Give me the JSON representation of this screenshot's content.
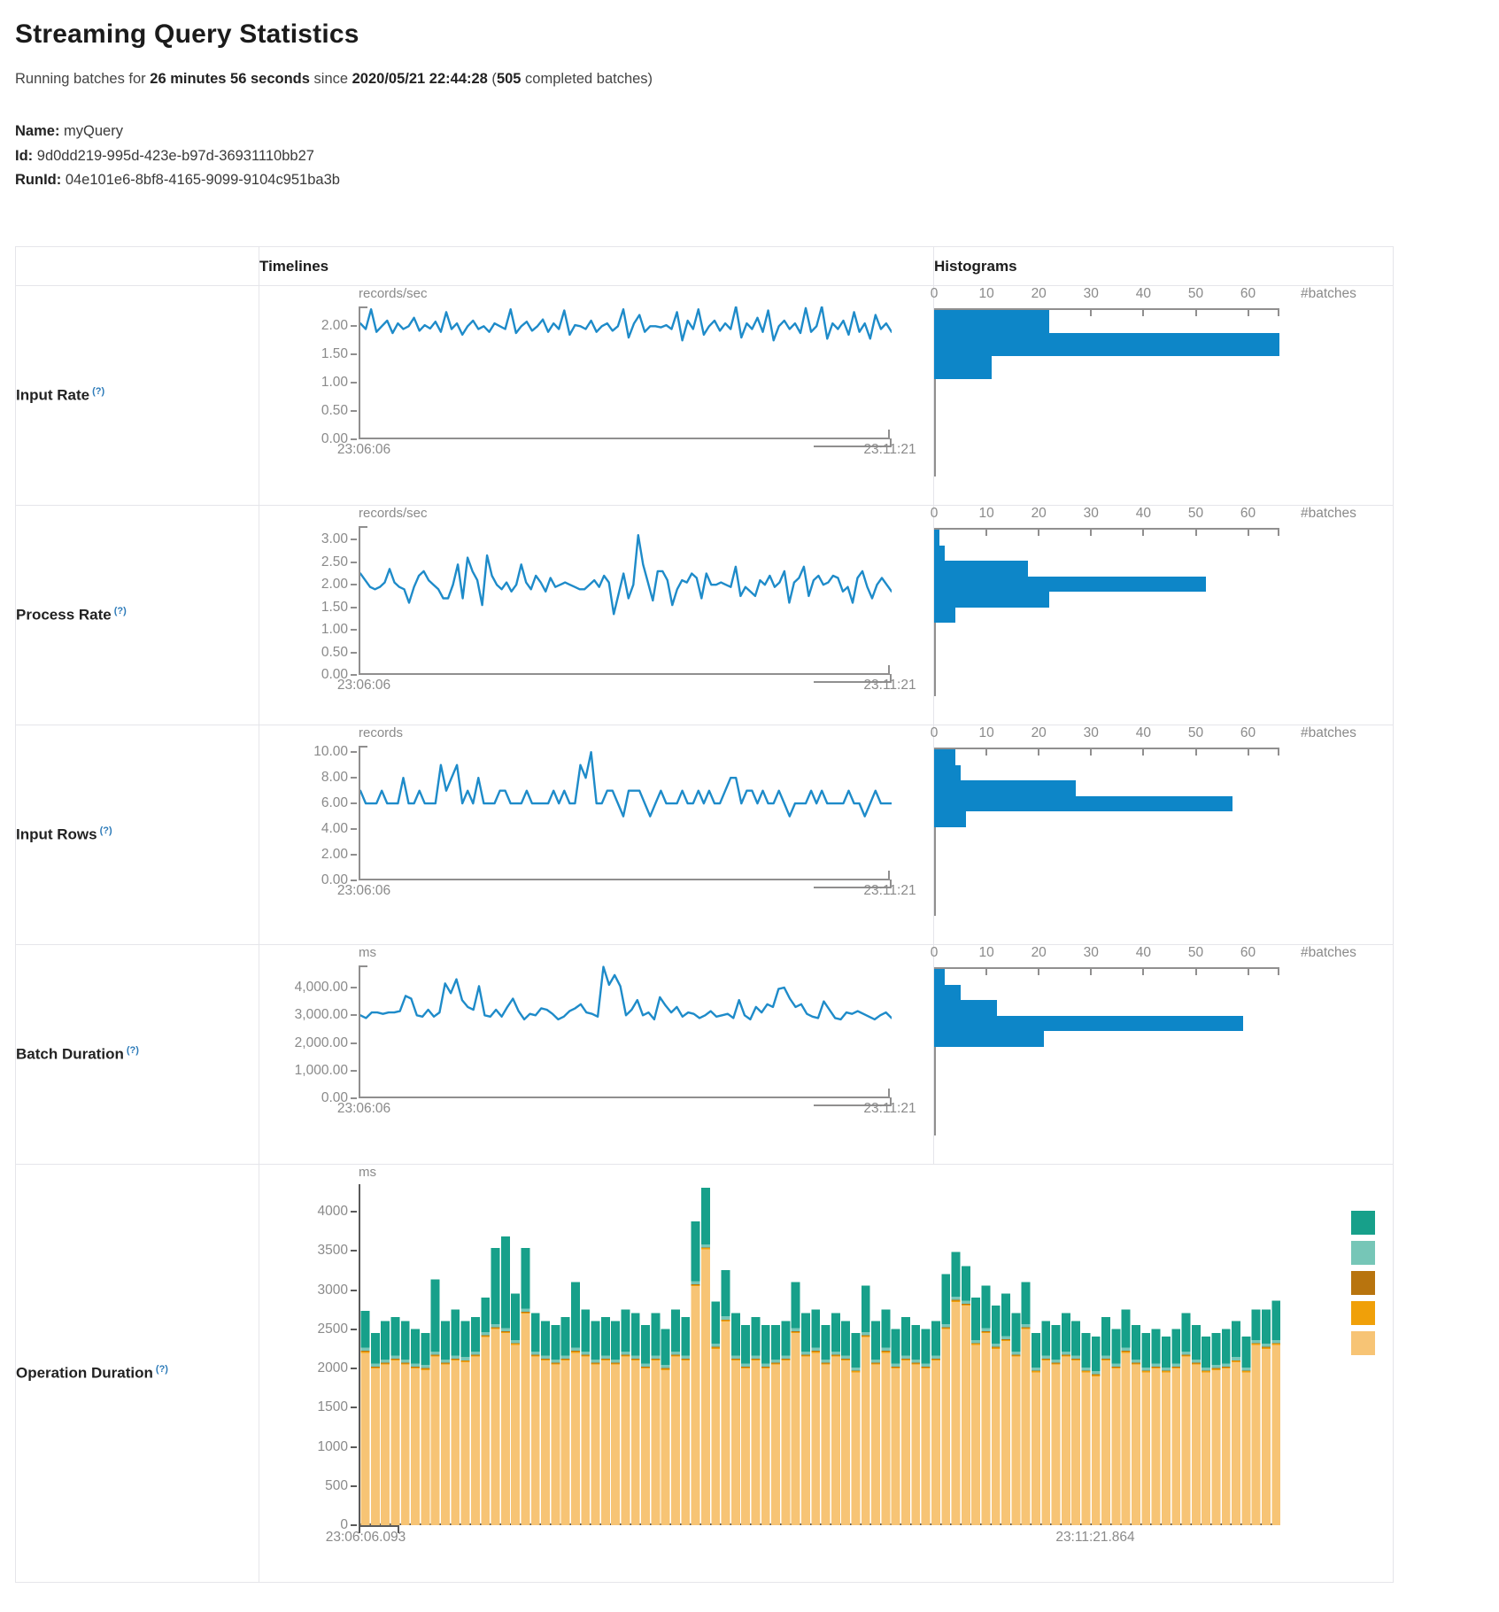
{
  "page": {
    "title": "Streaming Query Statistics",
    "subtitle": {
      "prefix": "Running batches for ",
      "duration": "26 minutes 56 seconds",
      "since": " since ",
      "start_time": "2020/05/21 22:44:28",
      "open_paren": " (",
      "batch_count": "505",
      "suffix": " completed batches)"
    },
    "query": {
      "name_label": "Name:",
      "name": "myQuery",
      "id_label": "Id:",
      "id": "9d0dd219-995d-423e-b97d-36931110bb27",
      "runid_label": "RunId:",
      "runid": "04e101e6-8bf8-4165-9099-9104c951ba3b"
    },
    "table_headers": {
      "timelines": "Timelines",
      "histograms": "Histograms"
    },
    "help_marker": "(?)"
  },
  "colors": {
    "line_blue": "#1e8bc9",
    "hist_blue": "#0d86c8",
    "axis_gray": "#908f8f",
    "axis_dark": "#5a5a5a",
    "teal": "#17a08a",
    "light_teal": "#76c6b7",
    "dark_orange": "#b8740e",
    "orange": "#f0a009",
    "tan": "#f7c475"
  },
  "chart_data": [
    {
      "label": "Input Rate",
      "timeline": {
        "type": "line",
        "unit": "records/sec",
        "ylim": [
          0,
          2.35
        ],
        "yticks": [
          {
            "label": "2.00",
            "v": 2
          },
          {
            "label": "1.50",
            "v": 1.5
          },
          {
            "label": "1.00",
            "v": 1
          },
          {
            "label": "0.50",
            "v": 0.5
          },
          {
            "label": "0.00",
            "v": 0
          }
        ],
        "x_start": "23:06:06",
        "x_end": "23:11:21",
        "values": [
          2.05,
          1.95,
          2.3,
          1.9,
          2.0,
          2.1,
          1.88,
          2.05,
          1.95,
          2.0,
          2.15,
          1.92,
          2.02,
          1.96,
          2.08,
          1.9,
          2.25,
          1.95,
          2.05,
          1.85,
          2.0,
          2.1,
          1.95,
          2.0,
          1.9,
          2.05,
          2.0,
          1.95,
          2.3,
          1.88,
          2.0,
          2.08,
          1.92,
          2.0,
          2.12,
          1.9,
          2.05,
          1.95,
          2.28,
          1.85,
          2.02,
          2.0,
          1.95,
          2.1,
          1.9,
          2.0,
          2.05,
          1.92,
          2.0,
          2.3,
          1.8,
          2.05,
          2.2,
          1.9,
          2.0,
          2.0,
          1.98,
          2.02,
          1.95,
          2.25,
          1.75,
          2.1,
          1.95,
          2.3,
          1.85,
          2.0,
          2.1,
          1.92,
          2.05,
          1.95,
          2.35,
          1.8,
          2.05,
          1.95,
          2.15,
          1.9,
          2.28,
          1.75,
          2.0,
          2.1,
          1.95,
          2.05,
          1.88,
          2.32,
          1.9,
          2.0,
          2.35,
          1.78,
          2.05,
          1.95,
          2.1,
          1.85,
          2.25,
          1.9,
          2.05,
          1.78,
          2.2,
          1.95,
          2.05,
          1.9
        ]
      },
      "histogram": {
        "type": "bar",
        "xlabel": "#batches",
        "xticks": [
          0,
          10,
          20,
          30,
          40,
          50,
          60
        ],
        "xmax": 66,
        "values": [
          22,
          66,
          11
        ]
      }
    },
    {
      "label": "Process Rate",
      "timeline": {
        "type": "line",
        "unit": "records/sec",
        "ylim": [
          0,
          3.3
        ],
        "yticks": [
          {
            "label": "3.00",
            "v": 3
          },
          {
            "label": "2.50",
            "v": 2.5
          },
          {
            "label": "2.00",
            "v": 2
          },
          {
            "label": "1.50",
            "v": 1.5
          },
          {
            "label": "1.00",
            "v": 1
          },
          {
            "label": "0.50",
            "v": 0.5
          },
          {
            "label": "0.00",
            "v": 0
          }
        ],
        "x_start": "23:06:06",
        "x_end": "23:11:21",
        "values": [
          2.25,
          2.1,
          1.95,
          1.9,
          1.95,
          2.05,
          2.35,
          2.05,
          1.95,
          1.9,
          1.6,
          1.95,
          2.2,
          2.3,
          2.1,
          2.0,
          1.9,
          1.7,
          1.7,
          2.0,
          2.45,
          1.7,
          2.6,
          2.3,
          2.1,
          1.55,
          2.65,
          2.2,
          2.0,
          1.9,
          2.05,
          1.85,
          2.0,
          2.45,
          2.05,
          1.9,
          2.2,
          2.05,
          1.85,
          2.15,
          1.95,
          2.0,
          2.05,
          2.0,
          1.95,
          1.9,
          1.9,
          2.0,
          2.1,
          1.95,
          2.2,
          2.05,
          1.35,
          1.8,
          2.25,
          1.7,
          2.0,
          3.1,
          2.45,
          2.05,
          1.65,
          2.3,
          2.3,
          2.1,
          1.55,
          1.9,
          2.1,
          2.05,
          2.25,
          2.15,
          1.7,
          2.25,
          2.0,
          2.0,
          2.05,
          2.0,
          1.95,
          2.4,
          1.75,
          1.95,
          1.85,
          1.75,
          2.1,
          2.0,
          2.2,
          1.95,
          2.05,
          2.3,
          1.6,
          2.05,
          2.15,
          2.4,
          1.75,
          2.1,
          2.2,
          2.0,
          2.05,
          2.2,
          2.15,
          1.85,
          1.95,
          1.6,
          2.15,
          2.3,
          1.95,
          1.7,
          2.0,
          2.15,
          2.0,
          1.85
        ]
      },
      "histogram": {
        "type": "bar",
        "xlabel": "#batches",
        "xticks": [
          0,
          10,
          20,
          30,
          40,
          50,
          60
        ],
        "xmax": 66,
        "values": [
          1,
          2,
          18,
          52,
          22,
          4
        ]
      }
    },
    {
      "label": "Input Rows",
      "timeline": {
        "type": "line",
        "unit": "records",
        "ylim": [
          0,
          10.5
        ],
        "yticks": [
          {
            "label": "10.00",
            "v": 10
          },
          {
            "label": "8.00",
            "v": 8
          },
          {
            "label": "6.00",
            "v": 6
          },
          {
            "label": "4.00",
            "v": 4
          },
          {
            "label": "2.00",
            "v": 2
          },
          {
            "label": "0.00",
            "v": 0
          }
        ],
        "x_start": "23:06:06",
        "x_end": "23:11:21",
        "values": [
          7,
          6,
          6,
          6,
          7,
          6,
          6,
          6,
          8,
          6,
          6,
          7,
          6,
          6,
          6,
          9,
          7,
          8,
          9,
          6,
          7,
          6,
          8,
          6,
          6,
          6,
          7,
          7,
          6,
          6,
          6,
          7,
          6,
          6,
          6,
          6,
          7,
          6,
          7,
          6,
          6,
          9,
          8,
          10,
          6,
          6,
          7,
          7,
          6,
          5,
          7,
          7,
          7,
          6,
          5,
          6,
          7,
          6,
          6,
          6,
          7,
          6,
          6,
          7,
          6,
          7,
          6,
          6,
          7,
          8,
          8,
          6,
          7,
          7,
          6,
          7,
          6,
          6,
          7,
          6,
          5,
          6,
          6,
          6,
          7,
          6,
          7,
          6,
          6,
          6,
          6,
          7,
          6,
          6,
          5,
          6,
          7,
          6,
          6,
          6
        ]
      },
      "histogram": {
        "type": "bar",
        "xlabel": "#batches",
        "xticks": [
          0,
          10,
          20,
          30,
          40,
          50,
          60
        ],
        "xmax": 66,
        "values": [
          4,
          5,
          27,
          57,
          6
        ]
      }
    },
    {
      "label": "Batch Duration",
      "timeline": {
        "type": "line",
        "unit": "ms",
        "ylim": [
          0,
          4800
        ],
        "yticks": [
          {
            "label": "4,000.00",
            "v": 4000
          },
          {
            "label": "3,000.00",
            "v": 3000
          },
          {
            "label": "2,000.00",
            "v": 2000
          },
          {
            "label": "1,000.00",
            "v": 1000
          },
          {
            "label": "0.00",
            "v": 0
          }
        ],
        "x_start": "23:06:06",
        "x_end": "23:11:21",
        "values": [
          3000,
          2900,
          3100,
          3100,
          3050,
          3100,
          3100,
          3150,
          3700,
          3600,
          3000,
          2950,
          3200,
          2950,
          3100,
          4150,
          3800,
          4300,
          3550,
          3300,
          3200,
          4050,
          3000,
          2950,
          3200,
          2950,
          3300,
          3600,
          3150,
          2850,
          3050,
          3000,
          3250,
          3200,
          3050,
          2850,
          2950,
          3150,
          3250,
          3400,
          3100,
          3050,
          2950,
          4750,
          4100,
          4450,
          4050,
          3000,
          3200,
          3550,
          3000,
          3100,
          2850,
          3650,
          3350,
          3100,
          3300,
          2950,
          3100,
          3050,
          2900,
          3000,
          3150,
          2950,
          3000,
          3050,
          2900,
          3550,
          3000,
          2850,
          3300,
          3100,
          3400,
          3300,
          3950,
          4000,
          3600,
          3300,
          3400,
          3050,
          2950,
          2900,
          3500,
          3200,
          2900,
          2850,
          3100,
          3050,
          3150,
          3050,
          2950,
          2850,
          3000,
          3100,
          2900
        ]
      },
      "histogram": {
        "type": "bar",
        "xlabel": "#batches",
        "xticks": [
          0,
          10,
          20,
          30,
          40,
          50,
          60
        ],
        "xmax": 66,
        "values": [
          2,
          5,
          12,
          59,
          21
        ]
      }
    },
    {
      "label": "Operation Duration",
      "stacked": {
        "type": "bar-stacked",
        "unit": "ms",
        "ylim": [
          0,
          4350
        ],
        "yticks": [
          {
            "label": "4000",
            "v": 4000
          },
          {
            "label": "3500",
            "v": 3500
          },
          {
            "label": "3000",
            "v": 3000
          },
          {
            "label": "2500",
            "v": 2500
          },
          {
            "label": "2000",
            "v": 2000
          },
          {
            "label": "1500",
            "v": 1500
          },
          {
            "label": "1000",
            "v": 1000
          },
          {
            "label": "500",
            "v": 500
          },
          {
            "label": "0",
            "v": 0
          }
        ],
        "x_start": "23:06:06.093",
        "x_end": "23:11:21.864",
        "stack_colors": [
          "#f7c475",
          "#f0a009",
          "#b8740e",
          "#76c6b7",
          "#17a08a"
        ],
        "legend_colors": [
          "#17a08a",
          "#76c6b7",
          "#b8740e",
          "#f0a009",
          "#f7c475"
        ],
        "slivers": [
          14,
          10,
          40
        ],
        "bars": [
          [
            2200,
            470
          ],
          [
            2000,
            390
          ],
          [
            2050,
            490
          ],
          [
            2100,
            490
          ],
          [
            2050,
            490
          ],
          [
            2000,
            440
          ],
          [
            1980,
            410
          ],
          [
            2150,
            920
          ],
          [
            2050,
            490
          ],
          [
            2100,
            590
          ],
          [
            2080,
            460
          ],
          [
            2150,
            440
          ],
          [
            2400,
            440
          ],
          [
            2500,
            970
          ],
          [
            2450,
            1170
          ],
          [
            2300,
            590
          ],
          [
            2700,
            770
          ],
          [
            2150,
            490
          ],
          [
            2100,
            440
          ],
          [
            2050,
            440
          ],
          [
            2100,
            490
          ],
          [
            2200,
            840
          ],
          [
            2150,
            540
          ],
          [
            2050,
            490
          ],
          [
            2100,
            490
          ],
          [
            2050,
            490
          ],
          [
            2150,
            540
          ],
          [
            2100,
            540
          ],
          [
            2000,
            490
          ],
          [
            2100,
            540
          ],
          [
            1980,
            460
          ],
          [
            2150,
            540
          ],
          [
            2100,
            490
          ],
          [
            3050,
            760
          ],
          [
            3520,
            720
          ],
          [
            2250,
            540
          ],
          [
            2600,
            590
          ],
          [
            2100,
            540
          ],
          [
            2000,
            490
          ],
          [
            2100,
            490
          ],
          [
            2000,
            490
          ],
          [
            2050,
            440
          ],
          [
            2100,
            440
          ],
          [
            2450,
            590
          ],
          [
            2150,
            490
          ],
          [
            2200,
            490
          ],
          [
            2050,
            440
          ],
          [
            2150,
            490
          ],
          [
            2100,
            440
          ],
          [
            1950,
            440
          ],
          [
            2400,
            590
          ],
          [
            2050,
            490
          ],
          [
            2200,
            490
          ],
          [
            2000,
            440
          ],
          [
            2100,
            490
          ],
          [
            2050,
            440
          ],
          [
            2000,
            440
          ],
          [
            2100,
            440
          ],
          [
            2500,
            640
          ],
          [
            2850,
            570
          ],
          [
            2800,
            440
          ],
          [
            2300,
            540
          ],
          [
            2450,
            540
          ],
          [
            2250,
            490
          ],
          [
            2350,
            540
          ],
          [
            2150,
            490
          ],
          [
            2500,
            540
          ],
          [
            1950,
            440
          ],
          [
            2100,
            440
          ],
          [
            2050,
            440
          ],
          [
            2150,
            490
          ],
          [
            2100,
            440
          ],
          [
            1950,
            440
          ],
          [
            1900,
            440
          ],
          [
            2100,
            490
          ],
          [
            2000,
            440
          ],
          [
            2200,
            490
          ],
          [
            2050,
            440
          ],
          [
            1950,
            440
          ],
          [
            2000,
            440
          ],
          [
            1950,
            390
          ],
          [
            2000,
            440
          ],
          [
            2150,
            490
          ],
          [
            2050,
            440
          ],
          [
            1950,
            390
          ],
          [
            1980,
            410
          ],
          [
            2000,
            440
          ],
          [
            2080,
            460
          ],
          [
            1950,
            390
          ],
          [
            2300,
            390
          ],
          [
            2250,
            440
          ],
          [
            2300,
            500
          ]
        ]
      }
    }
  ]
}
